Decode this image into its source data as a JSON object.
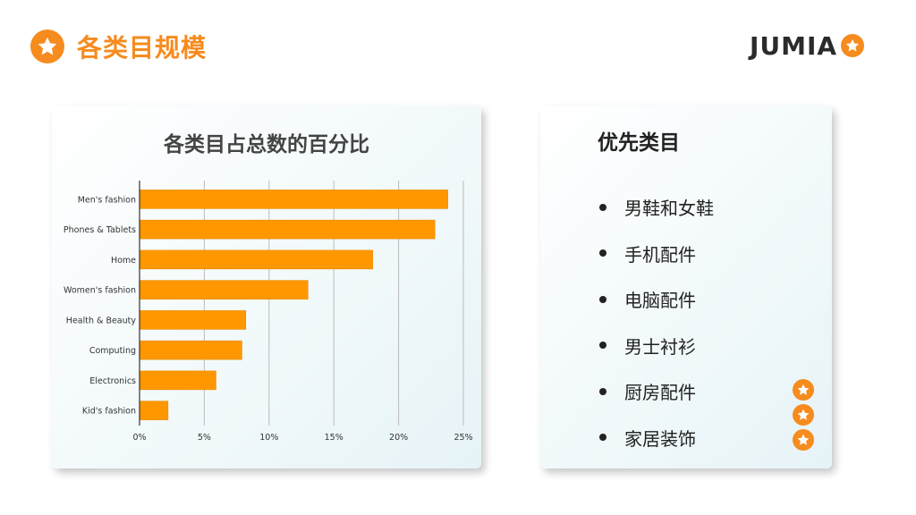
{
  "header": {
    "title": "各类目规模",
    "icon": "star-icon",
    "accent_color": "#f68b1e"
  },
  "logo": {
    "text": "JUMIA",
    "icon": "star-icon"
  },
  "chart_data": {
    "type": "bar",
    "orientation": "horizontal",
    "title": "各类目占总数的百分比",
    "categories": [
      "Men's fashion",
      "Phones & Tablets",
      "Home",
      "Women's fashion",
      "Health & Beauty",
      "Computing",
      "Electronics",
      "Kid's fashion"
    ],
    "values": [
      23.8,
      22.8,
      18.0,
      13.0,
      8.2,
      7.9,
      5.9,
      2.2
    ],
    "xlim": [
      0,
      25
    ],
    "x_ticks": [
      "0%",
      "5%",
      "10%",
      "15%",
      "20%",
      "25%"
    ],
    "x_tick_values": [
      0,
      5,
      10,
      15,
      20,
      25
    ],
    "bar_color": "#ff9800",
    "grid": true
  },
  "priority": {
    "title": "优先类目",
    "items": [
      "男鞋和女鞋",
      "手机配件",
      "电脑配件",
      "男士衬衫",
      "厨房配件",
      "家居装饰"
    ]
  }
}
